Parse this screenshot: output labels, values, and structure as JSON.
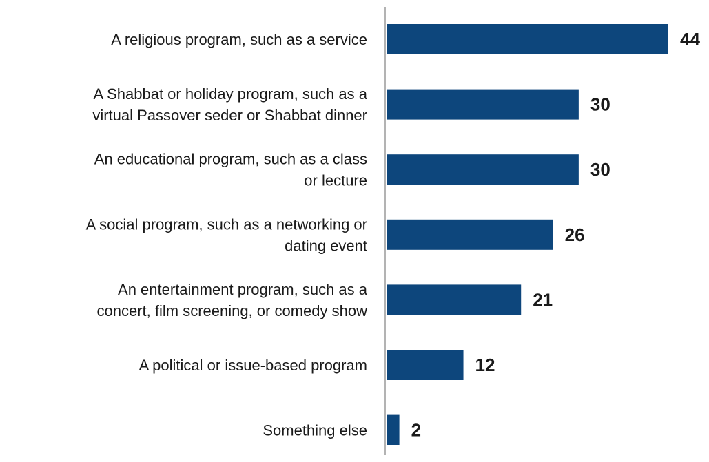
{
  "chart_data": {
    "type": "bar",
    "orientation": "horizontal",
    "categories": [
      [
        "A religious program, such as a service"
      ],
      [
        "A Shabbat or holiday program, such as a",
        "virtual Passover seder or Shabbat dinner"
      ],
      [
        "An educational program, such as a class",
        "or lecture"
      ],
      [
        "A social program, such as a networking or",
        "dating event"
      ],
      [
        "An entertainment program, such as a",
        "concert, film screening, or comedy show"
      ],
      [
        "A political or issue-based program"
      ],
      [
        "Something else"
      ]
    ],
    "values": [
      44,
      30,
      30,
      26,
      21,
      12,
      2
    ],
    "value_labels": [
      "44",
      "30",
      "30",
      "26",
      "21",
      "12",
      "2"
    ],
    "xlim": [
      0,
      44
    ],
    "bar_color": "#0d467c",
    "axis_color": "#b3b3b3",
    "grid": false,
    "legend": "none"
  }
}
